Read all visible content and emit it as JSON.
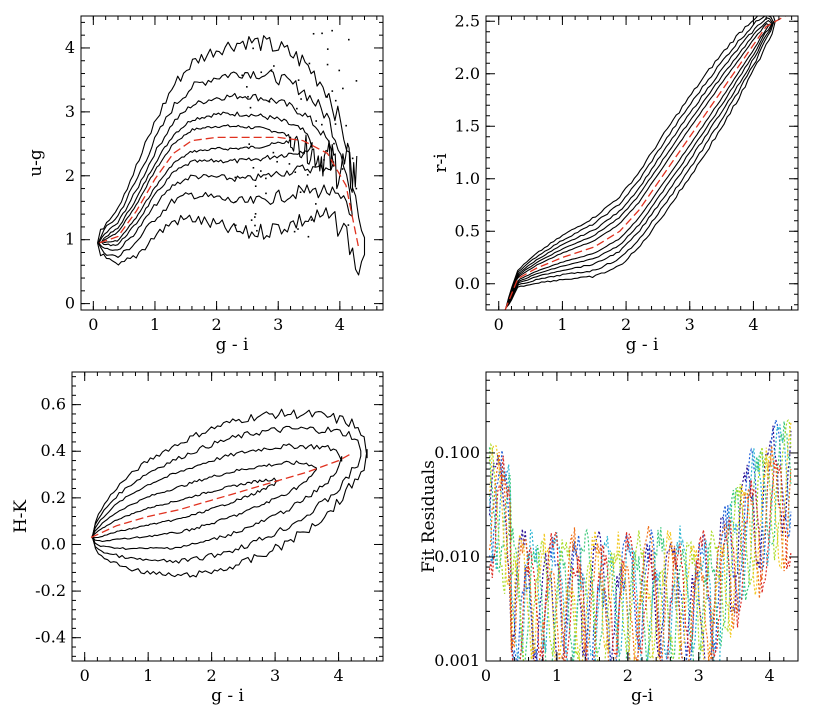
{
  "chart_data": [
    {
      "id": "ug",
      "type": "contour",
      "xlabel": "g - i",
      "ylabel": "u-g",
      "xlim": [
        -0.2,
        4.7
      ],
      "ylim": [
        -0.1,
        4.5
      ],
      "xticks": [
        0,
        1,
        2,
        3,
        4
      ],
      "xtick_labels": [
        "0",
        "1",
        "2",
        "3",
        "4"
      ],
      "yticks": [
        0,
        1,
        2,
        3,
        4
      ],
      "ytick_labels": [
        "0",
        "1",
        "2",
        "3",
        "4"
      ],
      "fit": {
        "color": "#e0311f",
        "x": [
          0.1,
          0.4,
          0.7,
          1.0,
          1.3,
          1.6,
          2.0,
          2.5,
          3.0,
          3.4,
          3.8,
          4.1,
          4.3
        ],
        "y": [
          0.95,
          1.05,
          1.45,
          1.95,
          2.35,
          2.55,
          2.6,
          2.6,
          2.6,
          2.55,
          2.35,
          1.85,
          0.9
        ]
      }
    },
    {
      "id": "ri",
      "type": "contour",
      "xlabel": "g - i",
      "ylabel": "r-i",
      "xlim": [
        -0.2,
        4.7
      ],
      "ylim": [
        -0.25,
        2.55
      ],
      "xticks": [
        0,
        1,
        2,
        3,
        4
      ],
      "xtick_labels": [
        "0",
        "1",
        "2",
        "3",
        "4"
      ],
      "yticks": [
        0,
        0.5,
        1.0,
        1.5,
        2.0,
        2.5
      ],
      "ytick_labels": [
        "0.0",
        "0.5",
        "1.0",
        "1.5",
        "2.0",
        "2.5"
      ],
      "fit": {
        "color": "#e0311f",
        "x": [
          0.1,
          0.3,
          0.6,
          1.0,
          1.5,
          1.9,
          2.2,
          2.6,
          3.0,
          3.4,
          3.8,
          4.2,
          4.5
        ],
        "y": [
          -0.25,
          0.05,
          0.15,
          0.25,
          0.35,
          0.5,
          0.7,
          1.05,
          1.4,
          1.75,
          2.1,
          2.45,
          2.55
        ]
      }
    },
    {
      "id": "hk",
      "type": "contour",
      "xlabel": "g - i",
      "ylabel": "H-K",
      "xlim": [
        -0.2,
        4.7
      ],
      "ylim": [
        -0.5,
        0.74
      ],
      "xticks": [
        0,
        1,
        2,
        3,
        4
      ],
      "xtick_labels": [
        "0",
        "1",
        "2",
        "3",
        "4"
      ],
      "yticks": [
        -0.4,
        -0.2,
        0.0,
        0.2,
        0.4,
        0.6
      ],
      "ytick_labels": [
        "-0.4",
        "-0.2",
        "0.0",
        "0.2",
        "0.4",
        "0.6"
      ],
      "fit": {
        "color": "#e0311f",
        "x": [
          0.1,
          0.5,
          1.0,
          1.5,
          2.0,
          2.5,
          3.0,
          3.5,
          4.0,
          4.2
        ],
        "y": [
          0.03,
          0.08,
          0.12,
          0.15,
          0.19,
          0.23,
          0.27,
          0.31,
          0.36,
          0.39
        ]
      }
    },
    {
      "id": "resid",
      "type": "line",
      "xlabel": "g-i",
      "ylabel": "Fit Residuals",
      "xlim": [
        0,
        4.4
      ],
      "ylim": [
        0.001,
        0.6
      ],
      "yscale": "log",
      "xticks": [
        0,
        1,
        2,
        3,
        4
      ],
      "xtick_labels": [
        "0",
        "1",
        "2",
        "3",
        "4"
      ],
      "yticks": [
        0.001,
        0.01,
        0.1
      ],
      "ytick_labels": [
        "0.001",
        "0.010",
        "0.100"
      ],
      "line_style": "dotted",
      "colors": [
        "#2c1296",
        "#1e5fd8",
        "#28b4d2",
        "#38c878",
        "#a8dc28",
        "#f2c81e",
        "#f06e14",
        "#dc281e"
      ]
    }
  ]
}
